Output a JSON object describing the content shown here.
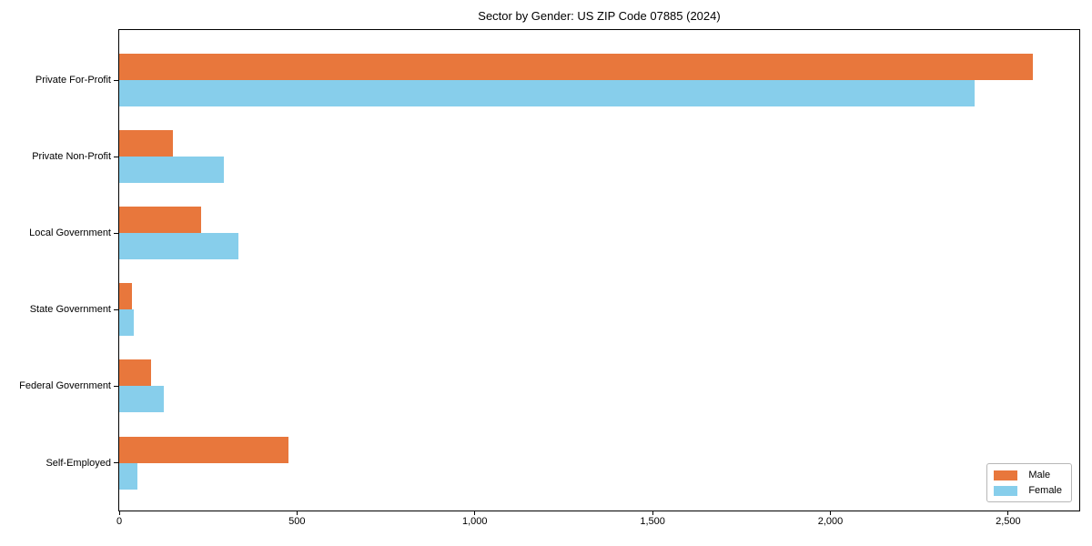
{
  "figure": {
    "title": "Sector by Gender: US ZIP Code 07885 (2024)"
  },
  "chart_data": {
    "type": "bar",
    "orientation": "horizontal",
    "title": "Sector by Gender: US ZIP Code 07885 (2024)",
    "categories": [
      "Private For-Profit",
      "Private Non-Profit",
      "Local Government",
      "State Government",
      "Federal Government",
      "Self-Employed"
    ],
    "series": [
      {
        "name": "Male",
        "color": "#E8773C",
        "values": [
          2570,
          150,
          230,
          35,
          90,
          475
        ]
      },
      {
        "name": "Female",
        "color": "#87CEEB",
        "values": [
          2405,
          295,
          335,
          40,
          125,
          50
        ]
      }
    ],
    "xlim": [
      0,
      2700
    ],
    "xticks": {
      "values": [
        0,
        500,
        1000,
        1500,
        2000,
        2500
      ],
      "labels": [
        "0",
        "500",
        "1,000",
        "1,500",
        "2,000",
        "2,500"
      ]
    },
    "legend": {
      "position": "lower right"
    },
    "grid": false,
    "background_color": "#ffffff",
    "axis_color": "#000000"
  }
}
